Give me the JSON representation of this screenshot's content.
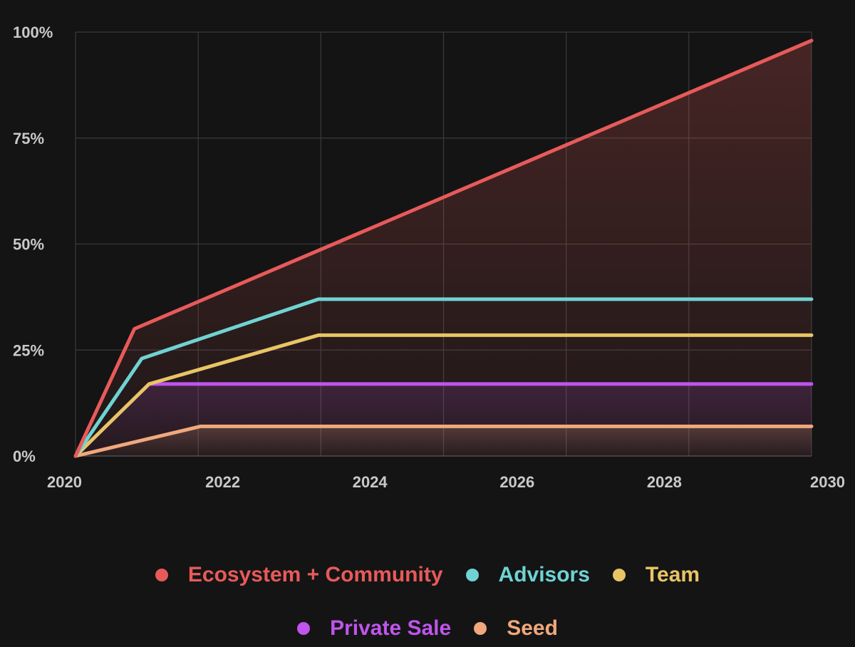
{
  "chart_data": {
    "type": "area",
    "title": "",
    "xlabel": "",
    "ylabel": "",
    "xlim": [
      2020,
      2030
    ],
    "ylim": [
      0,
      100
    ],
    "x_ticks": [
      2020,
      2022,
      2024,
      2026,
      2028,
      2030
    ],
    "x_tick_labels": [
      "2020",
      "2022",
      "2024",
      "2026",
      "2028",
      "2030"
    ],
    "y_ticks": [
      0,
      25,
      50,
      75,
      100
    ],
    "y_tick_labels": [
      "0%",
      "25%",
      "50%",
      "75%",
      "100%"
    ],
    "grid": true,
    "legend_position": "bottom",
    "series": [
      {
        "name": "Ecosystem + Community",
        "color": "#e85a5a",
        "points": [
          [
            2020,
            0
          ],
          [
            2020.8,
            30
          ],
          [
            2030,
            98
          ]
        ]
      },
      {
        "name": "Advisors",
        "color": "#6fd3d3",
        "points": [
          [
            2020,
            0
          ],
          [
            2020.9,
            23
          ],
          [
            2023.3,
            37
          ],
          [
            2030,
            37
          ]
        ]
      },
      {
        "name": "Team",
        "color": "#e8c565",
        "points": [
          [
            2020,
            0
          ],
          [
            2021,
            17
          ],
          [
            2023.3,
            28.5
          ],
          [
            2030,
            28.5
          ]
        ]
      },
      {
        "name": "Private Sale",
        "color": "#bf55ec",
        "points": [
          [
            2020,
            0
          ],
          [
            2021,
            17
          ],
          [
            2030,
            17
          ]
        ]
      },
      {
        "name": "Seed",
        "color": "#f0a87c",
        "points": [
          [
            2020,
            0
          ],
          [
            2021.7,
            7
          ],
          [
            2030,
            7
          ]
        ]
      }
    ]
  },
  "legend": {
    "row1": [
      {
        "label": "Ecosystem + Community",
        "color": "#e85a5a"
      },
      {
        "label": "Advisors",
        "color": "#6fd3d3"
      },
      {
        "label": "Team",
        "color": "#e8c565"
      }
    ],
    "row2": [
      {
        "label": "Private Sale",
        "color": "#bf55ec"
      },
      {
        "label": "Seed",
        "color": "#f0a87c"
      }
    ]
  }
}
